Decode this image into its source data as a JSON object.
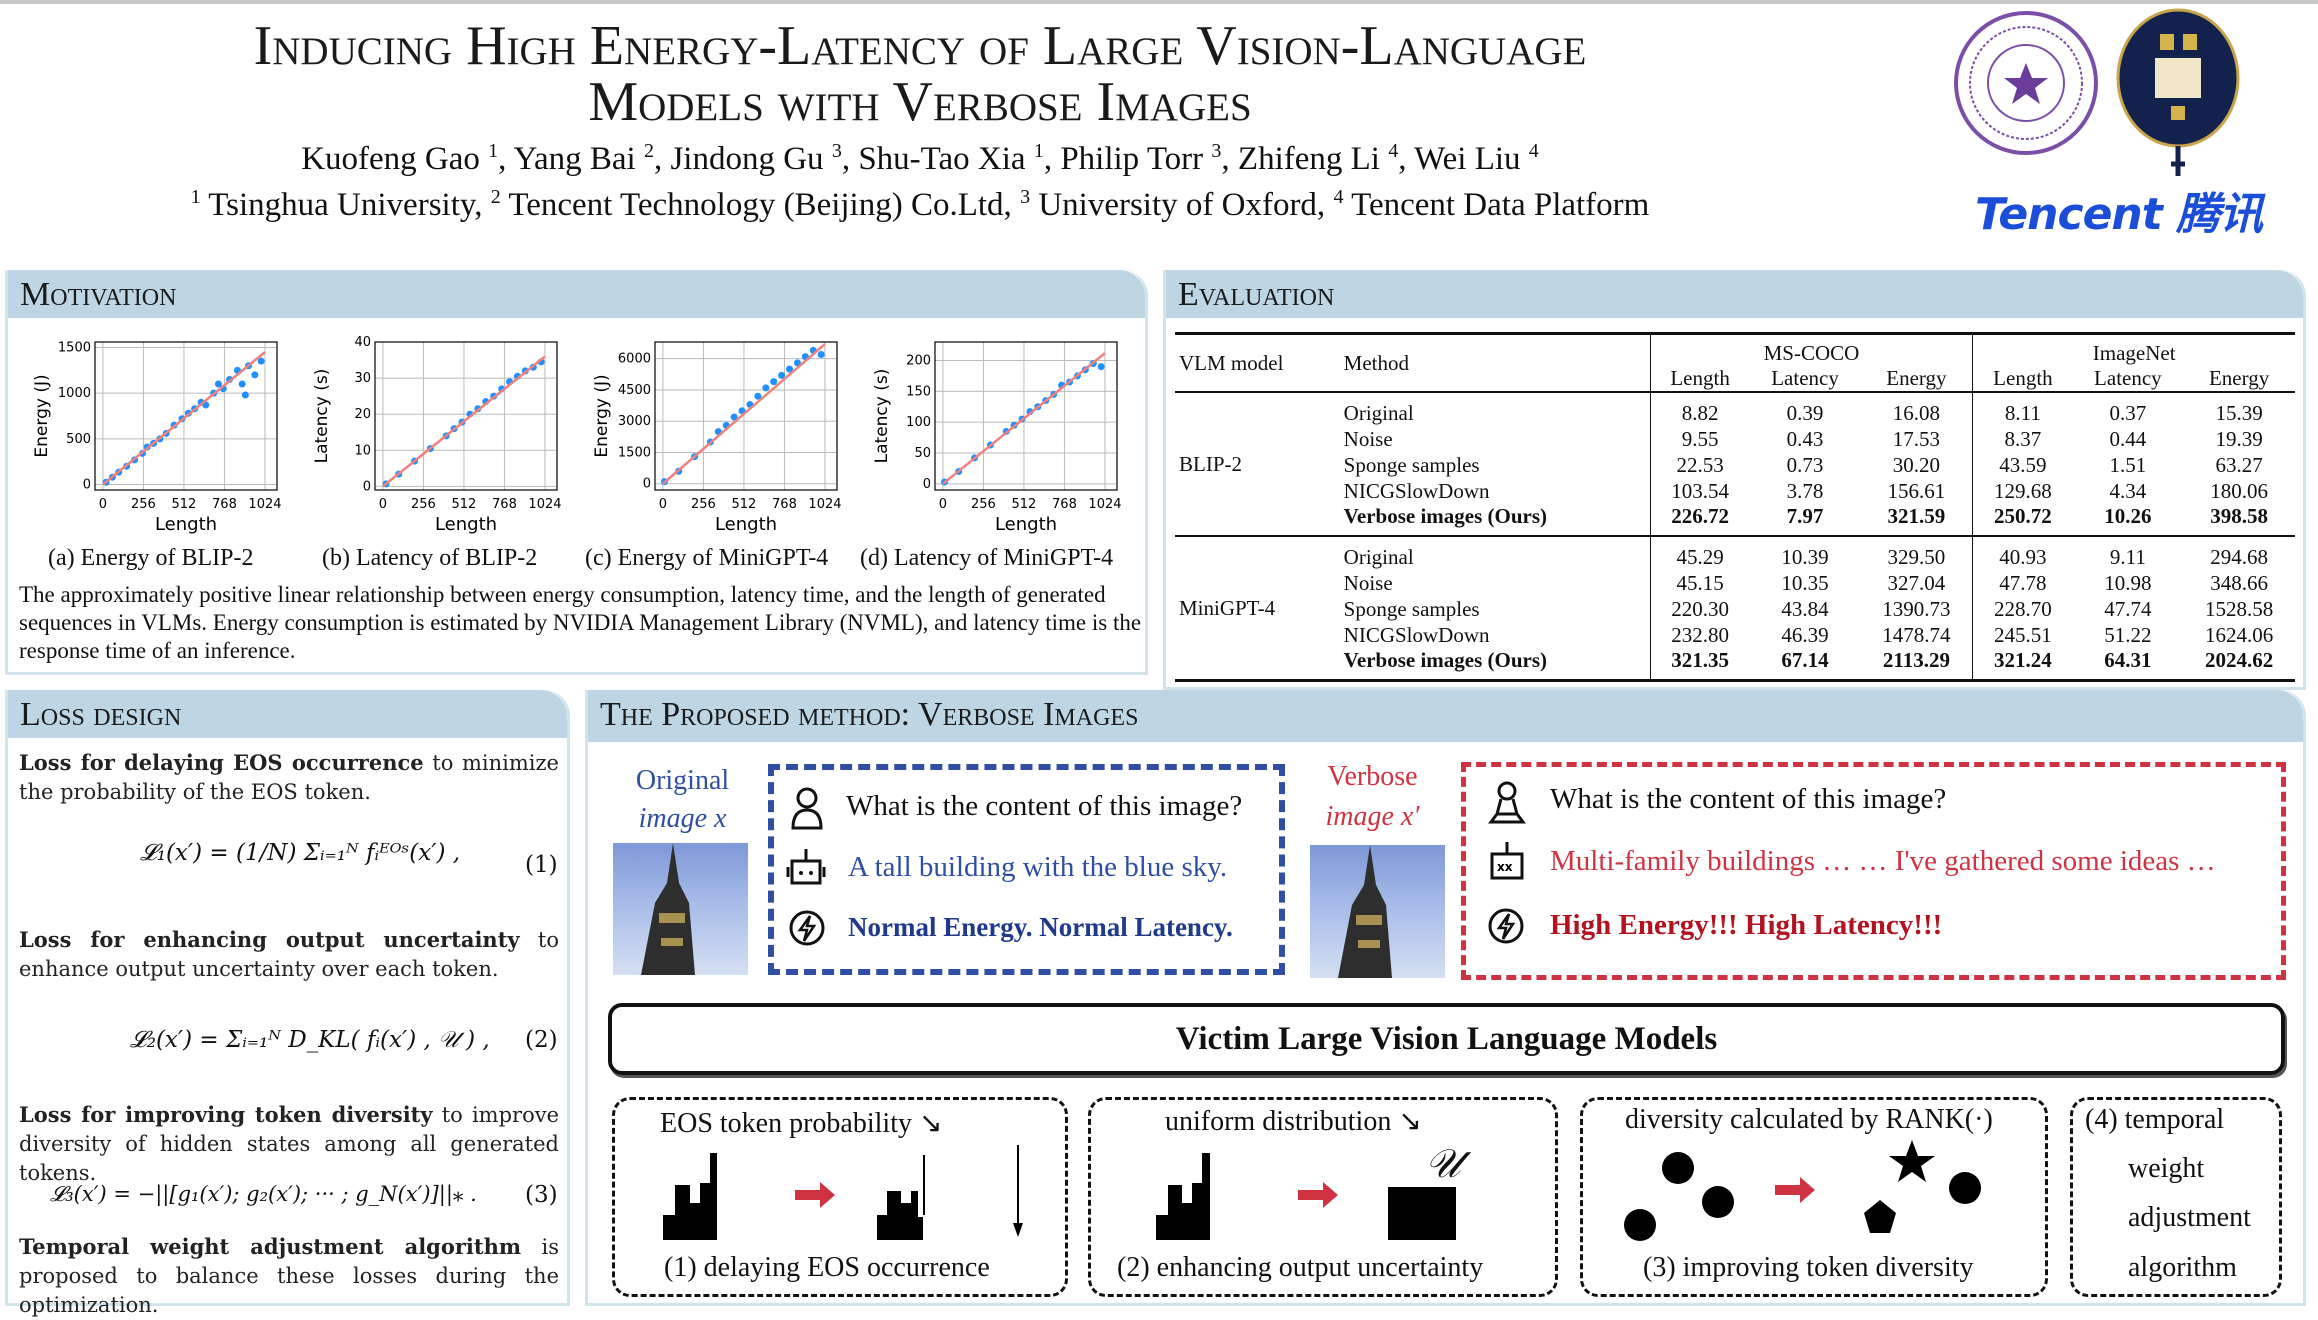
{
  "header": {
    "title_line1": "Inducing High Energy-Latency of Large Vision-Language",
    "title_line2": "Models with Verbose Images",
    "authors": [
      {
        "name": "Kuofeng Gao",
        "aff": "1"
      },
      {
        "name": "Yang Bai",
        "aff": "2"
      },
      {
        "name": "Jindong Gu",
        "aff": "3"
      },
      {
        "name": "Shu-Tao Xia",
        "aff": "1"
      },
      {
        "name": "Philip Torr",
        "aff": "3"
      },
      {
        "name": "Zhifeng Li",
        "aff": "4"
      },
      {
        "name": "Wei Liu",
        "aff": "4"
      }
    ],
    "affiliations": [
      {
        "num": "1",
        "name": "Tsinghua University,"
      },
      {
        "num": "2",
        "name": "Tencent Technology (Beijing) Co.Ltd,"
      },
      {
        "num": "3",
        "name": "University of Oxford,"
      },
      {
        "num": "4",
        "name": "Tencent Data Platform"
      }
    ],
    "logos": {
      "tsinghua": "Tsinghua University seal",
      "oxford": "University of Oxford crest",
      "tencent_text": "Tencent 腾讯",
      "tencent_color": "#1b4ed8"
    }
  },
  "motivation": {
    "heading": "Motivation",
    "captions": [
      "(a) Energy of BLIP-2",
      "(b) Latency of BLIP-2",
      "(c) Energy of MiniGPT-4",
      "(d) Latency of MiniGPT-4"
    ],
    "paragraph": "The approximately positive linear relationship between energy consumption, latency time, and the length of generated sequences in VLMs. Energy consumption is estimated by NVIDIA Management Library (NVML), and latency time is the response time of an inference."
  },
  "chart_data": [
    {
      "type": "scatter",
      "xlabel": "Length",
      "ylabel": "Energy (J)",
      "xticks": [
        0,
        256,
        512,
        768,
        1024
      ],
      "yticks": [
        0,
        500,
        1000,
        1500
      ],
      "xlim": [
        -50,
        1100
      ],
      "ylim": [
        -60,
        1560
      ],
      "grid": true,
      "point_color": "#1e90ff",
      "fit_color": "#f08080",
      "fit": [
        [
          0,
          0
        ],
        [
          1024,
          1450
        ]
      ],
      "points": [
        [
          20,
          25
        ],
        [
          60,
          80
        ],
        [
          100,
          135
        ],
        [
          150,
          200
        ],
        [
          200,
          270
        ],
        [
          250,
          340
        ],
        [
          280,
          410
        ],
        [
          320,
          450
        ],
        [
          360,
          500
        ],
        [
          400,
          560
        ],
        [
          450,
          650
        ],
        [
          500,
          720
        ],
        [
          540,
          780
        ],
        [
          580,
          830
        ],
        [
          620,
          900
        ],
        [
          650,
          870
        ],
        [
          700,
          1000
        ],
        [
          730,
          1100
        ],
        [
          760,
          1050
        ],
        [
          800,
          1150
        ],
        [
          850,
          1250
        ],
        [
          880,
          1100
        ],
        [
          900,
          980
        ],
        [
          920,
          1300
        ],
        [
          960,
          1200
        ],
        [
          1000,
          1350
        ]
      ]
    },
    {
      "type": "scatter",
      "xlabel": "Length",
      "ylabel": "Latency (s)",
      "xticks": [
        0,
        256,
        512,
        768,
        1024
      ],
      "yticks": [
        0,
        10,
        20,
        30,
        40
      ],
      "xlim": [
        -50,
        1100
      ],
      "ylim": [
        -1,
        40
      ],
      "grid": true,
      "point_color": "#1e90ff",
      "fit_color": "#f08080",
      "fit": [
        [
          0,
          0
        ],
        [
          1024,
          36
        ]
      ],
      "points": [
        [
          20,
          0.7
        ],
        [
          100,
          3.4
        ],
        [
          200,
          7
        ],
        [
          300,
          10.5
        ],
        [
          400,
          14
        ],
        [
          450,
          16
        ],
        [
          500,
          17.8
        ],
        [
          550,
          20
        ],
        [
          600,
          21.5
        ],
        [
          650,
          23.5
        ],
        [
          700,
          25
        ],
        [
          750,
          27
        ],
        [
          800,
          29
        ],
        [
          850,
          30.5
        ],
        [
          900,
          32
        ],
        [
          950,
          33
        ],
        [
          1000,
          34.5
        ]
      ]
    },
    {
      "type": "scatter",
      "xlabel": "Length",
      "ylabel": "Energy (J)",
      "xticks": [
        0,
        256,
        512,
        768,
        1024
      ],
      "yticks": [
        0,
        1500,
        3000,
        4500,
        6000
      ],
      "xlim": [
        -50,
        1100
      ],
      "ylim": [
        -300,
        6800
      ],
      "grid": true,
      "point_color": "#1e90ff",
      "fit_color": "#f08080",
      "fit": [
        [
          0,
          0
        ],
        [
          1024,
          6700
        ]
      ],
      "points": [
        [
          10,
          100
        ],
        [
          100,
          600
        ],
        [
          200,
          1300
        ],
        [
          300,
          2000
        ],
        [
          350,
          2500
        ],
        [
          400,
          2800
        ],
        [
          450,
          3200
        ],
        [
          500,
          3500
        ],
        [
          550,
          3800
        ],
        [
          600,
          4200
        ],
        [
          650,
          4600
        ],
        [
          700,
          4900
        ],
        [
          750,
          5200
        ],
        [
          800,
          5500
        ],
        [
          850,
          5800
        ],
        [
          900,
          6100
        ],
        [
          950,
          6400
        ],
        [
          1000,
          6200
        ]
      ]
    },
    {
      "type": "scatter",
      "xlabel": "Length",
      "ylabel": "Latency (s)",
      "xticks": [
        0,
        256,
        512,
        768,
        1024
      ],
      "yticks": [
        0,
        50,
        100,
        150,
        200
      ],
      "xlim": [
        -50,
        1100
      ],
      "ylim": [
        -10,
        230
      ],
      "grid": true,
      "point_color": "#1e90ff",
      "fit_color": "#f08080",
      "fit": [
        [
          0,
          0
        ],
        [
          1024,
          212
        ]
      ],
      "points": [
        [
          10,
          3
        ],
        [
          100,
          20
        ],
        [
          200,
          42
        ],
        [
          300,
          63
        ],
        [
          400,
          85
        ],
        [
          450,
          95
        ],
        [
          500,
          105
        ],
        [
          550,
          117
        ],
        [
          600,
          125
        ],
        [
          650,
          135
        ],
        [
          700,
          145
        ],
        [
          750,
          160
        ],
        [
          800,
          165
        ],
        [
          850,
          175
        ],
        [
          900,
          185
        ],
        [
          950,
          195
        ],
        [
          1000,
          190
        ]
      ]
    }
  ],
  "evaluation": {
    "heading": "Evaluation",
    "col_vlm": "VLM model",
    "col_method": "Method",
    "groups": [
      "MS-COCO",
      "ImageNet"
    ],
    "metrics": [
      "Length",
      "Latency",
      "Energy",
      "Length",
      "Latency",
      "Energy"
    ],
    "models": [
      {
        "name": "BLIP-2",
        "rows": [
          {
            "method": "Original",
            "values": [
              "8.82",
              "0.39",
              "16.08",
              "8.11",
              "0.37",
              "15.39"
            ]
          },
          {
            "method": "Noise",
            "values": [
              "9.55",
              "0.43",
              "17.53",
              "8.37",
              "0.44",
              "19.39"
            ]
          },
          {
            "method": "Sponge samples",
            "values": [
              "22.53",
              "0.73",
              "30.20",
              "43.59",
              "1.51",
              "63.27"
            ]
          },
          {
            "method": "NICGSlowDown",
            "values": [
              "103.54",
              "3.78",
              "156.61",
              "129.68",
              "4.34",
              "180.06"
            ]
          },
          {
            "method": "Verbose images (Ours)",
            "values": [
              "226.72",
              "7.97",
              "321.59",
              "250.72",
              "10.26",
              "398.58"
            ],
            "bold": true
          }
        ]
      },
      {
        "name": "MiniGPT-4",
        "rows": [
          {
            "method": "Original",
            "values": [
              "45.29",
              "10.39",
              "329.50",
              "40.93",
              "9.11",
              "294.68"
            ]
          },
          {
            "method": "Noise",
            "values": [
              "45.15",
              "10.35",
              "327.04",
              "47.78",
              "10.98",
              "348.66"
            ]
          },
          {
            "method": "Sponge samples",
            "values": [
              "220.30",
              "43.84",
              "1390.73",
              "228.70",
              "47.74",
              "1528.58"
            ]
          },
          {
            "method": "NICGSlowDown",
            "values": [
              "232.80",
              "46.39",
              "1478.74",
              "245.51",
              "51.22",
              "1624.06"
            ]
          },
          {
            "method": "Verbose images (Ours)",
            "values": [
              "321.35",
              "67.14",
              "2113.29",
              "321.24",
              "64.31",
              "2024.62"
            ],
            "bold": true
          }
        ]
      }
    ]
  },
  "loss": {
    "heading": "Loss design",
    "p1_bold": "Loss for delaying EOS occurrence",
    "p1_rest": " to minimize the probability of the EOS token.",
    "eq1": "𝓛₁(x′) = (1/N) Σᵢ₌₁ᴺ fᵢᴱᴼˢ(x′) ,",
    "eq1_num": "(1)",
    "p2_bold": "Loss for enhancing output uncertainty",
    "p2_rest": " to enhance output uncertainty over each token.",
    "eq2": "𝓛₂(x′) = Σᵢ₌₁ᴺ D_KL( fᵢ(x′) , 𝒰 ) ,",
    "eq2_num": "(2)",
    "p3_bold": "Loss for improving token diversity",
    "p3_rest": " to improve diversity of hidden states among all generated tokens.",
    "eq3": "𝓛₃(x′) = −||[g₁(x′); g₂(x′); ··· ; g_N(x′)]||⁎ .",
    "eq3_num": "(3)",
    "p4_bold": "Temporal weight adjustment algorithm",
    "p4_rest": " is proposed to balance these losses during the optimization."
  },
  "method": {
    "heading": "The Proposed method: Verbose Images",
    "original_label": "Original",
    "original_label2": "image x",
    "verbose_label": "Verbose",
    "verbose_label2": "image x′",
    "question": "What is the content of this image?",
    "orig_answer": "A tall building with the blue sky.",
    "orig_result": "Normal Energy. Normal Latency.",
    "verbose_answer": "Multi-family buildings … … I've gathered some ideas …",
    "verbose_result": "High Energy!!! High Latency!!!",
    "victim": "Victim Large Vision Language Models",
    "colors": {
      "blue": "#2f4fa3",
      "red": "#cf3342",
      "dark_red": "#b3121f"
    },
    "steps": [
      {
        "top": "EOS token probability ↘",
        "bottom": "(1) delaying EOS occurrence"
      },
      {
        "top": "uniform distribution ↘",
        "symbol": "𝒰",
        "bottom": "(2) enhancing output uncertainty"
      },
      {
        "top": "diversity calculated by RANK(·)",
        "bottom": "(3) improving token diversity"
      },
      {
        "lines": [
          "(4) temporal",
          "weight",
          "adjustment",
          "algorithm"
        ]
      }
    ]
  }
}
